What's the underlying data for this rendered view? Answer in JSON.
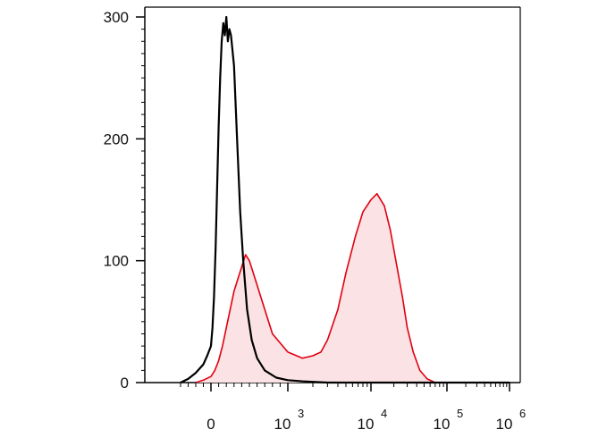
{
  "chart_data": {
    "type": "histogram",
    "title": "",
    "xlabel": "",
    "ylabel": "",
    "x_scale": "biexponential",
    "ylim": [
      0,
      300
    ],
    "y_ticks": [
      {
        "value": 0,
        "label": "0"
      },
      {
        "value": 100,
        "label": "100"
      },
      {
        "value": 200,
        "label": "200"
      },
      {
        "value": 300,
        "label": "300"
      }
    ],
    "x_ticks": [
      {
        "value": 0,
        "base": "0",
        "exp": ""
      },
      {
        "value": 1000,
        "base": "10",
        "exp": "3"
      },
      {
        "value": 10000,
        "base": "10",
        "exp": "4"
      },
      {
        "value": 100000,
        "base": "10",
        "exp": "5"
      },
      {
        "value": 1000000,
        "base": "10",
        "exp": "6"
      }
    ],
    "series": [
      {
        "color": "#000000",
        "fill": "none",
        "points": [
          [
            -400,
            0
          ],
          [
            -300,
            3
          ],
          [
            -200,
            8
          ],
          [
            -100,
            15
          ],
          [
            -50,
            22
          ],
          [
            0,
            30
          ],
          [
            20,
            45
          ],
          [
            40,
            70
          ],
          [
            60,
            110
          ],
          [
            80,
            160
          ],
          [
            100,
            210
          ],
          [
            120,
            250
          ],
          [
            140,
            280
          ],
          [
            160,
            295
          ],
          [
            180,
            285
          ],
          [
            200,
            300
          ],
          [
            220,
            280
          ],
          [
            240,
            290
          ],
          [
            260,
            285
          ],
          [
            300,
            260
          ],
          [
            340,
            200
          ],
          [
            380,
            140
          ],
          [
            420,
            100
          ],
          [
            470,
            60
          ],
          [
            530,
            35
          ],
          [
            600,
            20
          ],
          [
            700,
            10
          ],
          [
            850,
            4
          ],
          [
            1000,
            2
          ],
          [
            1500,
            1
          ],
          [
            3000,
            0
          ],
          [
            1000000,
            0
          ]
        ]
      },
      {
        "color": "#e0000f",
        "fill": "#fbe3e5",
        "points": [
          [
            -200,
            0
          ],
          [
            -100,
            2
          ],
          [
            0,
            5
          ],
          [
            50,
            10
          ],
          [
            100,
            18
          ],
          [
            150,
            30
          ],
          [
            200,
            45
          ],
          [
            250,
            60
          ],
          [
            300,
            75
          ],
          [
            350,
            85
          ],
          [
            400,
            95
          ],
          [
            450,
            105
          ],
          [
            500,
            100
          ],
          [
            550,
            90
          ],
          [
            650,
            70
          ],
          [
            800,
            40
          ],
          [
            1000,
            25
          ],
          [
            1500,
            20
          ],
          [
            2000,
            22
          ],
          [
            2500,
            25
          ],
          [
            3000,
            35
          ],
          [
            4000,
            60
          ],
          [
            5000,
            90
          ],
          [
            6500,
            120
          ],
          [
            8000,
            140
          ],
          [
            10000,
            150
          ],
          [
            12000,
            155
          ],
          [
            15000,
            145
          ],
          [
            18000,
            125
          ],
          [
            22000,
            95
          ],
          [
            26000,
            70
          ],
          [
            30000,
            45
          ],
          [
            36000,
            25
          ],
          [
            44000,
            10
          ],
          [
            55000,
            3
          ],
          [
            70000,
            0
          ],
          [
            1000000,
            0
          ]
        ]
      }
    ]
  }
}
